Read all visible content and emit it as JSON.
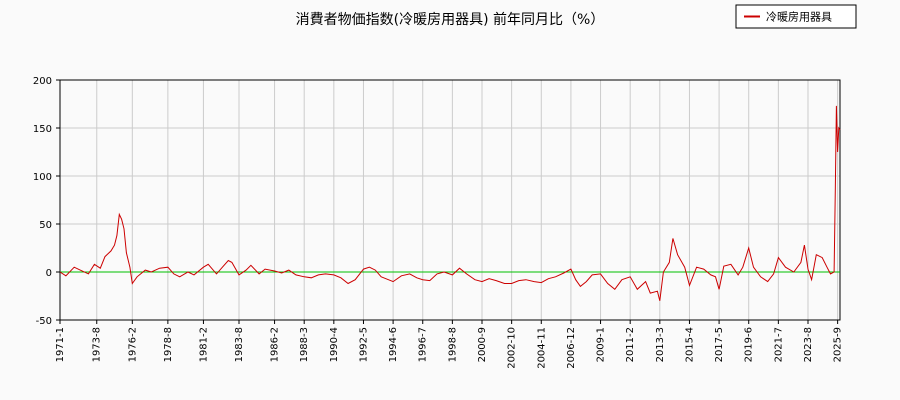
{
  "chart_data": {
    "type": "line",
    "title": "消費者物価指数(冷暖房用器具) 前年同月比（%）",
    "xlabel": "",
    "ylabel": "",
    "ylim": [
      -50,
      200
    ],
    "yticks": [
      -50,
      0,
      50,
      100,
      150,
      200
    ],
    "xlim": [
      "1971-1",
      "2025-11"
    ],
    "xticks": [
      "1971-1",
      "1973-8",
      "1976-2",
      "1978-8",
      "1981-2",
      "1983-8",
      "1986-2",
      "1988-3",
      "1990-4",
      "1992-5",
      "1994-6",
      "1996-7",
      "1998-8",
      "2000-9",
      "2002-10",
      "2004-11",
      "2006-12",
      "2009-1",
      "2011-2",
      "2013-3",
      "2015-4",
      "2017-5",
      "2019-6",
      "2021-7",
      "2023-8",
      "2025-9"
    ],
    "grid": true,
    "legend": "top-right",
    "reference_line": {
      "y": 0,
      "color": "#00c000"
    },
    "series": [
      {
        "name": "冷暖房用器具",
        "color": "#cc0000",
        "points": [
          [
            "1971-1",
            0
          ],
          [
            "1971-6",
            -4
          ],
          [
            "1972-1",
            5
          ],
          [
            "1972-6",
            2
          ],
          [
            "1973-1",
            -2
          ],
          [
            "1973-6",
            8
          ],
          [
            "1973-11",
            4
          ],
          [
            "1974-3",
            16
          ],
          [
            "1974-8",
            22
          ],
          [
            "1974-11",
            28
          ],
          [
            "1975-1",
            38
          ],
          [
            "1975-3",
            60
          ],
          [
            "1975-5",
            55
          ],
          [
            "1975-7",
            45
          ],
          [
            "1975-9",
            20
          ],
          [
            "1975-12",
            5
          ],
          [
            "1976-2",
            -12
          ],
          [
            "1976-6",
            -5
          ],
          [
            "1977-1",
            2
          ],
          [
            "1977-6",
            0
          ],
          [
            "1978-1",
            4
          ],
          [
            "1978-8",
            5
          ],
          [
            "1979-1",
            -2
          ],
          [
            "1979-6",
            -5
          ],
          [
            "1980-1",
            0
          ],
          [
            "1980-6",
            -3
          ],
          [
            "1981-2",
            5
          ],
          [
            "1981-6",
            8
          ],
          [
            "1982-1",
            -2
          ],
          [
            "1982-6",
            5
          ],
          [
            "1982-11",
            12
          ],
          [
            "1983-2",
            10
          ],
          [
            "1983-8",
            -3
          ],
          [
            "1984-2",
            2
          ],
          [
            "1984-6",
            7
          ],
          [
            "1985-1",
            -2
          ],
          [
            "1985-6",
            3
          ],
          [
            "1986-2",
            1
          ],
          [
            "1986-8",
            -1
          ],
          [
            "1987-2",
            2
          ],
          [
            "1987-8",
            -3
          ],
          [
            "1988-3",
            -5
          ],
          [
            "1988-9",
            -6
          ],
          [
            "1989-3",
            -3
          ],
          [
            "1989-9",
            -2
          ],
          [
            "1990-4",
            -3
          ],
          [
            "1990-10",
            -6
          ],
          [
            "1991-4",
            -12
          ],
          [
            "1991-10",
            -8
          ],
          [
            "1992-5",
            3
          ],
          [
            "1992-10",
            5
          ],
          [
            "1993-3",
            2
          ],
          [
            "1993-8",
            -5
          ],
          [
            "1994-2",
            -8
          ],
          [
            "1994-6",
            -10
          ],
          [
            "1995-1",
            -4
          ],
          [
            "1995-8",
            -2
          ],
          [
            "1996-2",
            -6
          ],
          [
            "1996-7",
            -8
          ],
          [
            "1997-1",
            -9
          ],
          [
            "1997-7",
            -2
          ],
          [
            "1998-1",
            0
          ],
          [
            "1998-8",
            -3
          ],
          [
            "1999-2",
            4
          ],
          [
            "1999-8",
            -2
          ],
          [
            "2000-3",
            -8
          ],
          [
            "2000-9",
            -10
          ],
          [
            "2001-3",
            -7
          ],
          [
            "2001-9",
            -9
          ],
          [
            "2002-4",
            -12
          ],
          [
            "2002-10",
            -12
          ],
          [
            "2003-4",
            -9
          ],
          [
            "2003-10",
            -8
          ],
          [
            "2004-5",
            -10
          ],
          [
            "2004-11",
            -11
          ],
          [
            "2005-5",
            -7
          ],
          [
            "2005-11",
            -5
          ],
          [
            "2006-6",
            -1
          ],
          [
            "2006-12",
            3
          ],
          [
            "2007-4",
            -8
          ],
          [
            "2007-8",
            -15
          ],
          [
            "2008-1",
            -10
          ],
          [
            "2008-6",
            -3
          ],
          [
            "2009-1",
            -2
          ],
          [
            "2009-7",
            -12
          ],
          [
            "2010-1",
            -18
          ],
          [
            "2010-7",
            -8
          ],
          [
            "2011-2",
            -5
          ],
          [
            "2011-8",
            -18
          ],
          [
            "2012-3",
            -10
          ],
          [
            "2012-7",
            -22
          ],
          [
            "2013-1",
            -20
          ],
          [
            "2013-3",
            -30
          ],
          [
            "2013-6",
            0
          ],
          [
            "2013-11",
            10
          ],
          [
            "2014-2",
            35
          ],
          [
            "2014-6",
            18
          ],
          [
            "2014-12",
            5
          ],
          [
            "2015-4",
            -14
          ],
          [
            "2015-10",
            5
          ],
          [
            "2016-4",
            3
          ],
          [
            "2016-10",
            -3
          ],
          [
            "2017-2",
            -5
          ],
          [
            "2017-5",
            -18
          ],
          [
            "2017-9",
            6
          ],
          [
            "2018-3",
            8
          ],
          [
            "2018-9",
            -3
          ],
          [
            "2019-1",
            5
          ],
          [
            "2019-6",
            25
          ],
          [
            "2019-10",
            5
          ],
          [
            "2020-4",
            -5
          ],
          [
            "2020-10",
            -10
          ],
          [
            "2021-3",
            -2
          ],
          [
            "2021-7",
            15
          ],
          [
            "2022-1",
            5
          ],
          [
            "2022-8",
            0
          ],
          [
            "2023-2",
            10
          ],
          [
            "2023-5",
            28
          ],
          [
            "2023-8",
            3
          ],
          [
            "2023-11",
            -8
          ],
          [
            "2024-3",
            18
          ],
          [
            "2024-8",
            15
          ],
          [
            "2024-12",
            5
          ],
          [
            "2025-3",
            -2
          ],
          [
            "2025-6",
            0
          ],
          [
            "2025-7",
            85
          ],
          [
            "2025-8",
            173
          ],
          [
            "2025-9",
            125
          ],
          [
            "2025-10",
            150
          ],
          [
            "2025-11",
            148
          ]
        ]
      }
    ]
  }
}
